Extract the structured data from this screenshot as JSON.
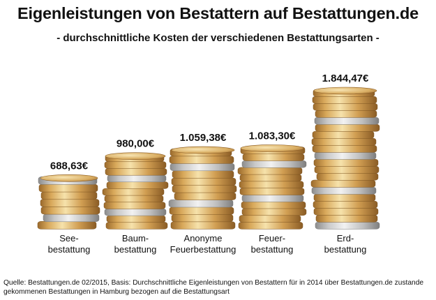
{
  "title": "Eigenleistungen von Bestattern auf Bestattungen.de",
  "subtitle": "- durchschnittliche Kosten der verschiedenen Bestattungsarten -",
  "source": "Quelle: Bestattungen.de 02/2015, Basis: Durchschnittliche Eigenleistungen von Bestattern für in 2014 über Bestattungen.de zustande gekommenen Bestattungen in Hamburg bezogen auf die Bestattungsart",
  "colors": {
    "gold_light": "#f3dda2",
    "gold": "#d8a85a",
    "gold_dark": "#9b6a2c",
    "silver_light": "#eeeeee",
    "silver": "#c8c8c8",
    "silver_dark": "#8c8c8c"
  },
  "chart_data": {
    "type": "bar",
    "ylim": [
      0,
      2000
    ],
    "categories": [
      [
        "See-",
        "bestattung"
      ],
      [
        "Baum-",
        "bestattung"
      ],
      [
        "Anonyme",
        "Feuerbestattung"
      ],
      [
        "Feuer-",
        "bestattung"
      ],
      [
        "Erd-",
        "bestattung"
      ]
    ],
    "values": [
      688.63,
      980.0,
      1059.38,
      1083.3,
      1844.47
    ],
    "value_labels": [
      "688,63€",
      "980,00€",
      "1.059,38€",
      "1.083,30€",
      "1.844,47€"
    ]
  }
}
